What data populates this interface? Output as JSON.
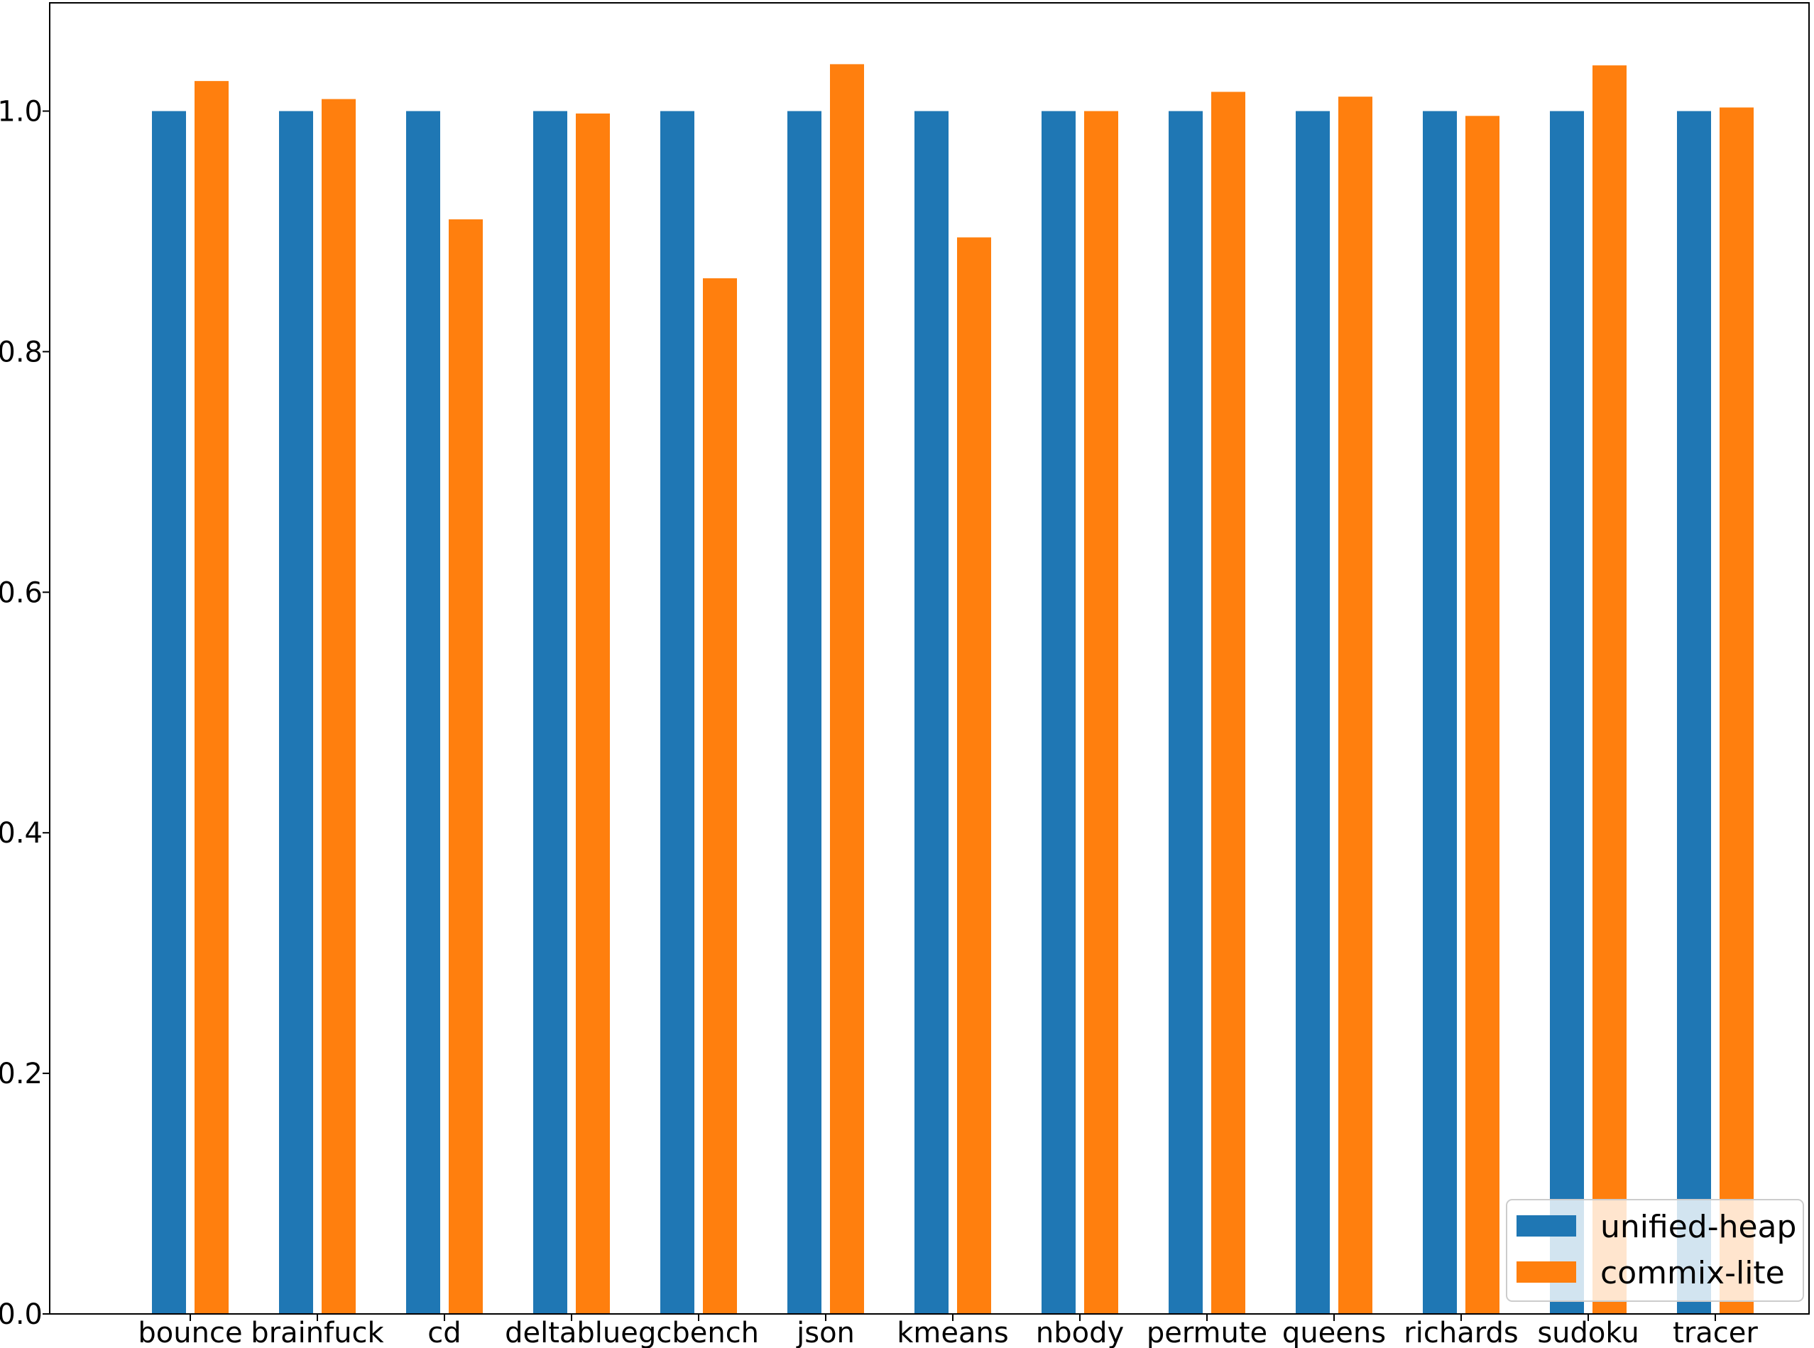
{
  "chart_data": {
    "type": "bar",
    "title": "",
    "xlabel": "",
    "ylabel": "",
    "categories": [
      "bounce",
      "brainfuck",
      "cd",
      "deltablue",
      "gcbench",
      "json",
      "kmeans",
      "nbody",
      "permute",
      "queens",
      "richards",
      "sudoku",
      "tracer"
    ],
    "series": [
      {
        "name": "unified-heap",
        "color": "#1f77b4",
        "values": [
          1.0,
          1.0,
          1.0,
          1.0,
          1.0,
          1.0,
          1.0,
          1.0,
          1.0,
          1.0,
          1.0,
          1.0,
          1.0
        ]
      },
      {
        "name": "commix-lite",
        "color": "#ff7f0e",
        "values": [
          1.025,
          1.01,
          0.91,
          0.998,
          0.861,
          1.039,
          0.895,
          1.0,
          1.016,
          1.012,
          0.996,
          1.038,
          1.003
        ]
      }
    ],
    "ylim": [
      0,
      1.09
    ],
    "yticks": [
      "0.0",
      "0.2",
      "0.4",
      "0.6",
      "0.8",
      "1.0"
    ],
    "grid": false,
    "legend": {
      "placement": "bottom-right",
      "opacity": 0.8
    }
  }
}
